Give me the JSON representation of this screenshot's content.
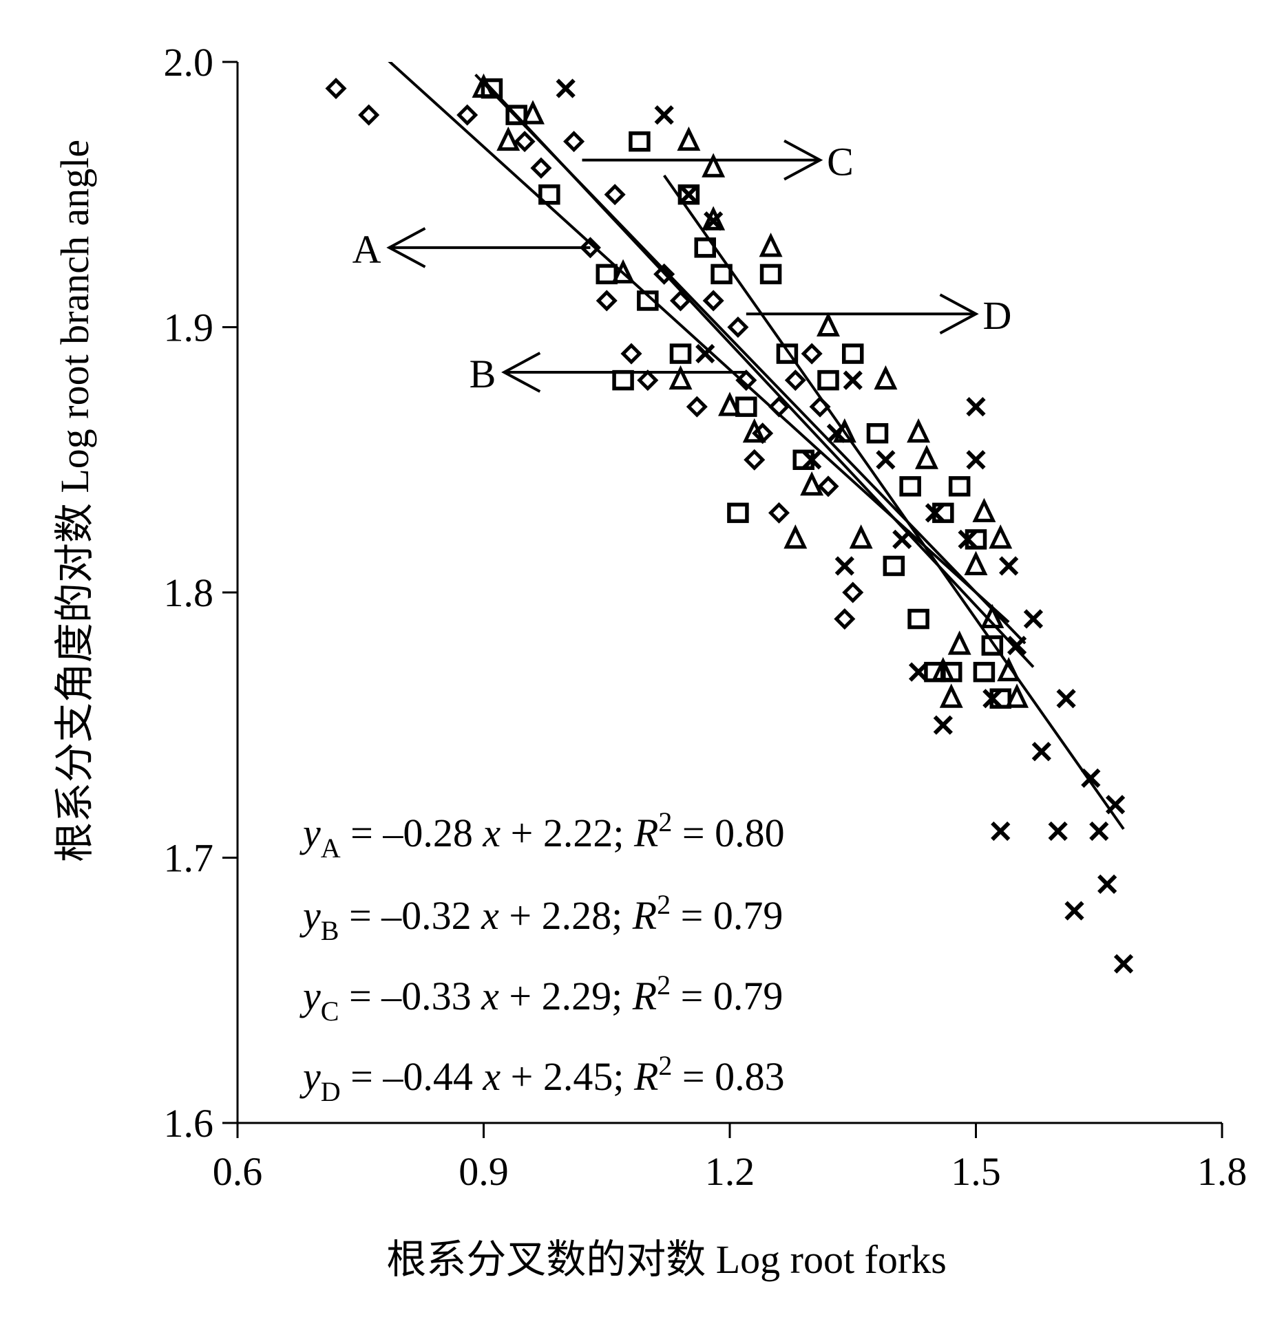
{
  "chart_data": {
    "type": "scatter",
    "xlabel": "根系分叉数的对数 Log root forks",
    "ylabel": "根系分支角度的对数 Log root branch angle",
    "xlim": [
      0.6,
      1.8
    ],
    "ylim": [
      1.6,
      2.0
    ],
    "xticks": [
      "0.6",
      "0.9",
      "1.2",
      "1.5",
      "1.8"
    ],
    "yticks": [
      "1.6",
      "1.7",
      "1.8",
      "1.9",
      "2.0"
    ],
    "grid": false,
    "legend": "none",
    "series": [
      {
        "marker": "diamond",
        "points": [
          [
            0.72,
            1.99
          ],
          [
            0.76,
            1.98
          ],
          [
            0.88,
            1.98
          ],
          [
            0.95,
            1.97
          ],
          [
            0.97,
            1.96
          ],
          [
            1.01,
            1.97
          ],
          [
            1.03,
            1.93
          ],
          [
            1.06,
            1.95
          ],
          [
            1.05,
            1.91
          ],
          [
            1.08,
            1.89
          ],
          [
            1.1,
            1.88
          ],
          [
            1.12,
            1.92
          ],
          [
            1.14,
            1.91
          ],
          [
            1.16,
            1.87
          ],
          [
            1.18,
            1.91
          ],
          [
            1.21,
            1.9
          ],
          [
            1.22,
            1.88
          ],
          [
            1.23,
            1.85
          ],
          [
            1.24,
            1.86
          ],
          [
            1.26,
            1.83
          ],
          [
            1.26,
            1.87
          ],
          [
            1.28,
            1.88
          ],
          [
            1.3,
            1.89
          ],
          [
            1.31,
            1.87
          ],
          [
            1.32,
            1.84
          ],
          [
            1.34,
            1.79
          ],
          [
            1.35,
            1.8
          ]
        ]
      },
      {
        "marker": "square",
        "points": [
          [
            0.91,
            1.99
          ],
          [
            0.94,
            1.98
          ],
          [
            0.98,
            1.95
          ],
          [
            1.05,
            1.92
          ],
          [
            1.07,
            1.88
          ],
          [
            1.1,
            1.91
          ],
          [
            1.09,
            1.97
          ],
          [
            1.14,
            1.89
          ],
          [
            1.15,
            1.95
          ],
          [
            1.17,
            1.93
          ],
          [
            1.19,
            1.92
          ],
          [
            1.21,
            1.83
          ],
          [
            1.22,
            1.87
          ],
          [
            1.25,
            1.92
          ],
          [
            1.27,
            1.89
          ],
          [
            1.29,
            1.85
          ],
          [
            1.32,
            1.88
          ],
          [
            1.35,
            1.89
          ],
          [
            1.38,
            1.86
          ],
          [
            1.4,
            1.81
          ],
          [
            1.42,
            1.84
          ],
          [
            1.43,
            1.79
          ],
          [
            1.45,
            1.77
          ],
          [
            1.46,
            1.83
          ],
          [
            1.47,
            1.77
          ],
          [
            1.48,
            1.84
          ],
          [
            1.5,
            1.82
          ],
          [
            1.51,
            1.77
          ],
          [
            1.52,
            1.78
          ],
          [
            1.53,
            1.76
          ]
        ]
      },
      {
        "marker": "triangle",
        "points": [
          [
            0.9,
            1.99
          ],
          [
            0.93,
            1.97
          ],
          [
            0.96,
            1.98
          ],
          [
            1.07,
            1.92
          ],
          [
            1.15,
            1.97
          ],
          [
            1.18,
            1.96
          ],
          [
            1.18,
            1.94
          ],
          [
            1.14,
            1.88
          ],
          [
            1.2,
            1.87
          ],
          [
            1.23,
            1.86
          ],
          [
            1.25,
            1.93
          ],
          [
            1.28,
            1.82
          ],
          [
            1.3,
            1.84
          ],
          [
            1.32,
            1.9
          ],
          [
            1.34,
            1.86
          ],
          [
            1.36,
            1.82
          ],
          [
            1.39,
            1.88
          ],
          [
            1.43,
            1.86
          ],
          [
            1.44,
            1.85
          ],
          [
            1.46,
            1.77
          ],
          [
            1.47,
            1.76
          ],
          [
            1.48,
            1.78
          ],
          [
            1.5,
            1.81
          ],
          [
            1.51,
            1.83
          ],
          [
            1.52,
            1.79
          ],
          [
            1.53,
            1.82
          ],
          [
            1.54,
            1.77
          ],
          [
            1.55,
            1.76
          ]
        ]
      },
      {
        "marker": "x",
        "points": [
          [
            1.0,
            1.99
          ],
          [
            1.12,
            1.98
          ],
          [
            1.15,
            1.95
          ],
          [
            1.18,
            1.94
          ],
          [
            1.17,
            1.89
          ],
          [
            1.3,
            1.85
          ],
          [
            1.33,
            1.86
          ],
          [
            1.34,
            1.81
          ],
          [
            1.35,
            1.88
          ],
          [
            1.39,
            1.85
          ],
          [
            1.41,
            1.82
          ],
          [
            1.43,
            1.77
          ],
          [
            1.45,
            1.83
          ],
          [
            1.46,
            1.75
          ],
          [
            1.49,
            1.82
          ],
          [
            1.5,
            1.87
          ],
          [
            1.5,
            1.85
          ],
          [
            1.52,
            1.76
          ],
          [
            1.53,
            1.71
          ],
          [
            1.54,
            1.81
          ],
          [
            1.55,
            1.78
          ],
          [
            1.57,
            1.79
          ],
          [
            1.58,
            1.74
          ],
          [
            1.6,
            1.71
          ],
          [
            1.61,
            1.76
          ],
          [
            1.62,
            1.68
          ],
          [
            1.64,
            1.73
          ],
          [
            1.65,
            1.71
          ],
          [
            1.66,
            1.69
          ],
          [
            1.67,
            1.72
          ],
          [
            1.68,
            1.66
          ]
        ]
      }
    ],
    "fits": [
      {
        "name": "A",
        "slope": -0.28,
        "intercept": 2.22,
        "x_range": [
          0.78,
          1.54
        ]
      },
      {
        "name": "B",
        "slope": -0.32,
        "intercept": 2.28,
        "x_range": [
          0.89,
          1.56
        ]
      },
      {
        "name": "C",
        "slope": -0.33,
        "intercept": 2.29,
        "x_range": [
          0.9,
          1.57
        ]
      },
      {
        "name": "D",
        "slope": -0.44,
        "intercept": 2.45,
        "x_range": [
          1.12,
          1.68
        ]
      }
    ],
    "annotations": [
      {
        "label": "A",
        "x": 1.03,
        "y": 1.93,
        "text_x": 0.785,
        "text_y": 1.93
      },
      {
        "label": "B",
        "x": 1.22,
        "y": 1.883,
        "text_x": 0.925,
        "text_y": 1.883
      },
      {
        "label": "C",
        "x": 1.02,
        "y": 1.963,
        "text_x": 1.31,
        "text_y": 1.963
      },
      {
        "label": "D",
        "x": 1.22,
        "y": 1.905,
        "text_x": 1.5,
        "text_y": 1.905
      }
    ],
    "equations": [
      {
        "y_sub": "A",
        "slope": "–0.28",
        "intercept": "2.22",
        "r2": "0.80"
      },
      {
        "y_sub": "B",
        "slope": "–0.32",
        "intercept": "2.28",
        "r2": "0.79"
      },
      {
        "y_sub": "C",
        "slope": "–0.33",
        "intercept": "2.29",
        "r2": "0.79"
      },
      {
        "y_sub": "D",
        "slope": "–0.44",
        "intercept": "2.45",
        "r2": "0.83"
      }
    ]
  }
}
